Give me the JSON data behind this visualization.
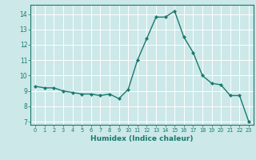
{
  "x": [
    0,
    1,
    2,
    3,
    4,
    5,
    6,
    7,
    8,
    9,
    10,
    11,
    12,
    13,
    14,
    15,
    16,
    17,
    18,
    19,
    20,
    21,
    22,
    23
  ],
  "y": [
    9.3,
    9.2,
    9.2,
    9.0,
    8.9,
    8.8,
    8.8,
    8.7,
    8.8,
    8.5,
    9.1,
    11.0,
    12.4,
    13.8,
    13.8,
    14.2,
    12.5,
    11.5,
    10.0,
    9.5,
    9.4,
    8.7,
    8.7,
    7.0
  ],
  "line_color": "#1a7a6e",
  "marker": "D",
  "marker_size": 2.0,
  "bg_color": "#cce8e8",
  "grid_color": "#ffffff",
  "xlabel": "Humidex (Indice chaleur)",
  "xlim": [
    -0.5,
    23.5
  ],
  "ylim": [
    6.8,
    14.6
  ],
  "yticks": [
    7,
    8,
    9,
    10,
    11,
    12,
    13,
    14
  ],
  "xticks": [
    0,
    1,
    2,
    3,
    4,
    5,
    6,
    7,
    8,
    9,
    10,
    11,
    12,
    13,
    14,
    15,
    16,
    17,
    18,
    19,
    20,
    21,
    22,
    23
  ]
}
